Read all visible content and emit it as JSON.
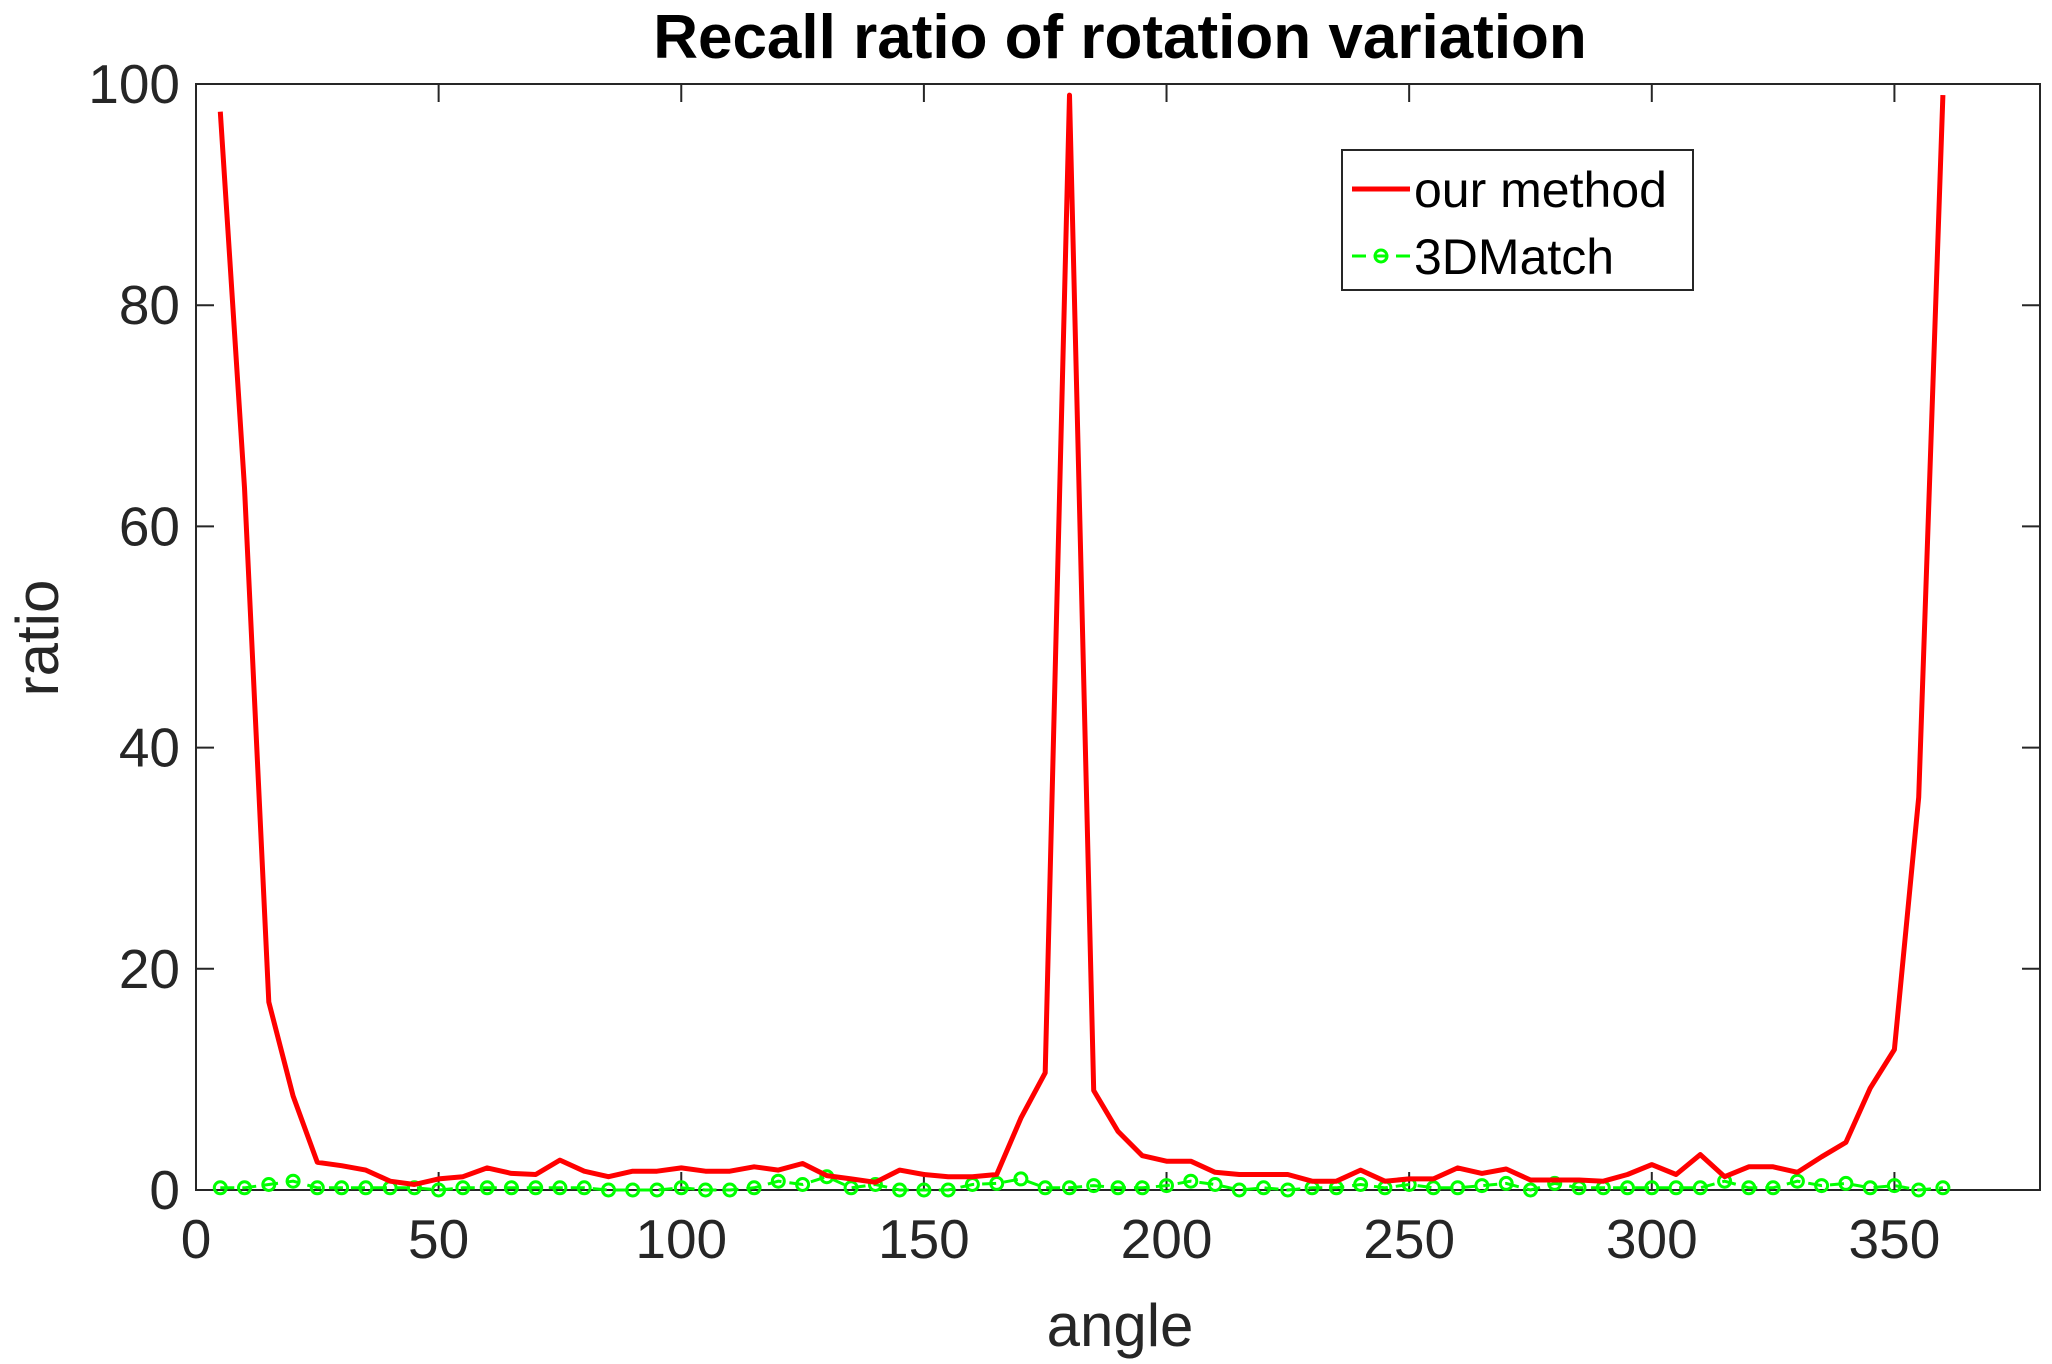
{
  "chart_data": {
    "type": "line",
    "title": "Recall ratio of rotation variation",
    "xlabel": "angle",
    "ylabel": "ratio",
    "xlim": [
      0,
      380
    ],
    "ylim": [
      0,
      100
    ],
    "xticks": [
      0,
      50,
      100,
      150,
      200,
      250,
      300,
      350
    ],
    "yticks": [
      0,
      20,
      40,
      60,
      80,
      100
    ],
    "xtick_labels": [
      "0",
      "50",
      "100",
      "150",
      "200",
      "250",
      "300",
      "350"
    ],
    "ytick_labels": [
      "0",
      "20",
      "40",
      "60",
      "80",
      "100"
    ],
    "legend_position": "top-right",
    "x": [
      5,
      10,
      15,
      20,
      25,
      30,
      35,
      40,
      45,
      50,
      55,
      60,
      65,
      70,
      75,
      80,
      85,
      90,
      95,
      100,
      105,
      110,
      115,
      120,
      125,
      130,
      135,
      140,
      145,
      150,
      155,
      160,
      165,
      170,
      175,
      180,
      185,
      190,
      195,
      200,
      205,
      210,
      215,
      220,
      225,
      230,
      235,
      240,
      245,
      250,
      255,
      260,
      265,
      270,
      275,
      280,
      285,
      290,
      295,
      300,
      305,
      310,
      315,
      320,
      325,
      330,
      335,
      340,
      345,
      350,
      355,
      360
    ],
    "series": [
      {
        "name": "our method",
        "color": "#ff0000",
        "marker": "none",
        "values": [
          97.5,
          63.5,
          17,
          8.5,
          2.5,
          2.2,
          1.8,
          0.8,
          0.5,
          1,
          1.2,
          2,
          1.5,
          1.4,
          2.7,
          1.7,
          1.2,
          1.7,
          1.7,
          2,
          1.7,
          1.7,
          2.1,
          1.8,
          2.4,
          1.3,
          1,
          0.7,
          1.8,
          1.4,
          1.2,
          1.2,
          1.4,
          6.5,
          10.6,
          99,
          9,
          5.3,
          3.1,
          2.6,
          2.6,
          1.6,
          1.4,
          1.4,
          1.4,
          0.8,
          0.8,
          1.8,
          0.8,
          1,
          1,
          2,
          1.5,
          1.9,
          0.9,
          0.9,
          0.9,
          0.8,
          1.4,
          2.3,
          1.4,
          3.2,
          1.2,
          2.1,
          2.1,
          1.6,
          3,
          4.3,
          9.2,
          12.7,
          35.5,
          99
        ]
      },
      {
        "name": "3DMatch",
        "color": "#00ff00",
        "marker": "circle",
        "values": [
          0.2,
          0.2,
          0.5,
          0.8,
          0.2,
          0.2,
          0.2,
          0.2,
          0.2,
          0,
          0.2,
          0.2,
          0.2,
          0.2,
          0.2,
          0.2,
          0,
          0,
          0,
          0.2,
          0,
          0,
          0.2,
          0.8,
          0.5,
          1.2,
          0.2,
          0.5,
          0,
          0,
          0,
          0.5,
          0.6,
          1,
          0.2,
          0.2,
          0.4,
          0.2,
          0.2,
          0.4,
          0.8,
          0.5,
          0,
          0.2,
          0,
          0.2,
          0.2,
          0.5,
          0.2,
          0.5,
          0.2,
          0.2,
          0.4,
          0.6,
          0,
          0.6,
          0.2,
          0.2,
          0.2,
          0.2,
          0.2,
          0.2,
          0.8,
          0.2,
          0.2,
          0.8,
          0.4,
          0.6,
          0.2,
          0.4,
          0,
          0.2
        ]
      }
    ]
  }
}
